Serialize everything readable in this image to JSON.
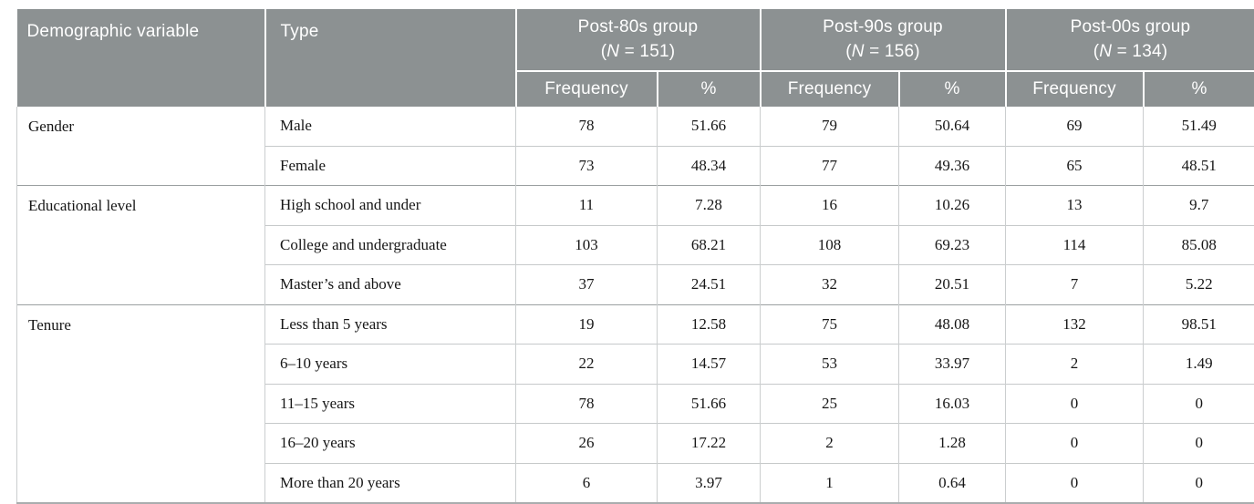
{
  "table": {
    "columns": {
      "demographic": "Demographic variable",
      "type": "Type",
      "frequency": "Frequency",
      "percent": "%"
    },
    "group_headers": [
      {
        "name": "Post-80s group",
        "n_open": "(",
        "n_symbol": "N",
        "n_rest": " = 151)"
      },
      {
        "name": "Post-90s group",
        "n_open": "(",
        "n_symbol": "N",
        "n_rest": " = 156)"
      },
      {
        "name": "Post-00s group",
        "n_open": "(",
        "n_symbol": "N",
        "n_rest": " = 134)"
      }
    ],
    "body_groups": [
      {
        "category": "Gender",
        "rows": [
          {
            "type": "Male",
            "values": [
              "78",
              "51.66",
              "79",
              "50.64",
              "69",
              "51.49"
            ]
          },
          {
            "type": "Female",
            "values": [
              "73",
              "48.34",
              "77",
              "49.36",
              "65",
              "48.51"
            ]
          }
        ]
      },
      {
        "category": "Educational level",
        "rows": [
          {
            "type": "High school and under",
            "values": [
              "11",
              "7.28",
              "16",
              "10.26",
              "13",
              "9.7"
            ]
          },
          {
            "type": "College and undergraduate",
            "values": [
              "103",
              "68.21",
              "108",
              "69.23",
              "114",
              "85.08"
            ]
          },
          {
            "type": "Master’s and above",
            "values": [
              "37",
              "24.51",
              "32",
              "20.51",
              "7",
              "5.22"
            ]
          }
        ]
      },
      {
        "category": "Tenure",
        "rows": [
          {
            "type": "Less than 5 years",
            "values": [
              "19",
              "12.58",
              "75",
              "48.08",
              "132",
              "98.51"
            ]
          },
          {
            "type": "6–10 years",
            "values": [
              "22",
              "14.57",
              "53",
              "33.97",
              "2",
              "1.49"
            ]
          },
          {
            "type": "11–15 years",
            "values": [
              "78",
              "51.66",
              "25",
              "16.03",
              "0",
              "0"
            ]
          },
          {
            "type": "16–20 years",
            "values": [
              "26",
              "17.22",
              "2",
              "1.28",
              "0",
              "0"
            ]
          },
          {
            "type": "More than 20 years",
            "values": [
              "6",
              "3.97",
              "1",
              "0.64",
              "0",
              "0"
            ]
          }
        ]
      }
    ],
    "colors": {
      "header_bg": "#8c9192",
      "header_text": "#ffffff",
      "body_text": "#161616",
      "grid_light": "#cbcecf",
      "grid_dark": "#9ba0a1",
      "bottom_border": "#a9adae"
    }
  }
}
